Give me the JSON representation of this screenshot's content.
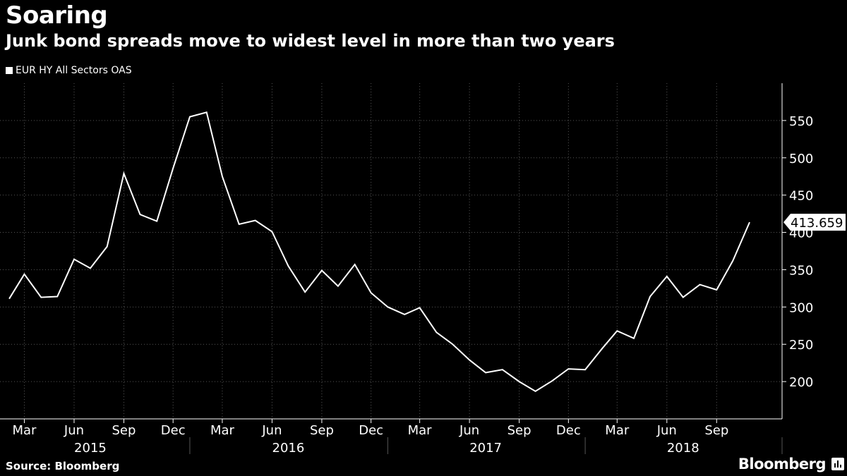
{
  "header": {
    "title": "Soaring",
    "subtitle": "Junk bond spreads move to widest level in more than two years"
  },
  "legend": {
    "label": "EUR HY All Sectors OAS"
  },
  "footer": {
    "source": "Source: Bloomberg",
    "brand": "Bloomberg"
  },
  "colors": {
    "background": "#000000",
    "line": "#ffffff",
    "grid": "#555555",
    "text": "#ffffff"
  },
  "chart_data": {
    "type": "line",
    "series": [
      {
        "name": "EUR HY All Sectors OAS",
        "x": [
          "2015-02",
          "2015-03",
          "2015-04",
          "2015-05",
          "2015-06",
          "2015-07",
          "2015-08",
          "2015-09",
          "2015-10",
          "2015-11",
          "2015-12",
          "2016-01",
          "2016-02",
          "2016-03",
          "2016-04",
          "2016-05",
          "2016-06",
          "2016-07",
          "2016-08",
          "2016-09",
          "2016-10",
          "2016-11",
          "2016-12",
          "2017-01",
          "2017-02",
          "2017-03",
          "2017-04",
          "2017-05",
          "2017-06",
          "2017-07",
          "2017-08",
          "2017-09",
          "2017-10",
          "2017-11",
          "2017-12",
          "2018-01",
          "2018-02",
          "2018-03",
          "2018-04",
          "2018-05",
          "2018-06",
          "2018-07",
          "2018-08",
          "2018-09",
          "2018-10",
          "2018-11"
        ],
        "values": [
          311,
          344,
          313,
          314,
          364,
          352,
          381,
          479,
          424,
          415,
          486,
          555,
          561,
          475,
          411,
          416,
          401,
          355,
          320,
          349,
          328,
          357,
          319,
          300,
          290,
          299,
          266,
          250,
          229,
          212,
          216,
          200,
          187,
          201,
          217,
          216,
          244,
          268,
          258,
          314,
          341,
          313,
          330,
          323,
          362,
          413.659
        ]
      }
    ],
    "last_value_label": "413.659",
    "ylim": [
      150,
      600
    ],
    "yticks": [
      200,
      250,
      300,
      350,
      400,
      450,
      500,
      550
    ],
    "xlim": [
      "2015-01-15",
      "2018-12-31"
    ],
    "month_ticks": [
      {
        "label": "Mar",
        "date": "2015-03-01"
      },
      {
        "label": "Jun",
        "date": "2015-06-01"
      },
      {
        "label": "Sep",
        "date": "2015-09-01"
      },
      {
        "label": "Dec",
        "date": "2015-12-01"
      },
      {
        "label": "Mar",
        "date": "2016-03-01"
      },
      {
        "label": "Jun",
        "date": "2016-06-01"
      },
      {
        "label": "Sep",
        "date": "2016-09-01"
      },
      {
        "label": "Dec",
        "date": "2016-12-01"
      },
      {
        "label": "Mar",
        "date": "2017-03-01"
      },
      {
        "label": "Jun",
        "date": "2017-06-01"
      },
      {
        "label": "Sep",
        "date": "2017-09-01"
      },
      {
        "label": "Dec",
        "date": "2017-12-01"
      },
      {
        "label": "Mar",
        "date": "2018-03-01"
      },
      {
        "label": "Jun",
        "date": "2018-06-01"
      },
      {
        "label": "Sep",
        "date": "2018-09-01"
      }
    ],
    "year_labels": [
      {
        "label": "2015",
        "date": "2015-07-01"
      },
      {
        "label": "2016",
        "date": "2016-07-01"
      },
      {
        "label": "2017",
        "date": "2017-07-01"
      },
      {
        "label": "2018",
        "date": "2018-07-01"
      }
    ],
    "year_dividers": [
      "2016-01-01",
      "2017-01-01",
      "2018-01-01",
      "2019-01-01"
    ],
    "grid": true,
    "y_axis_side": "right"
  }
}
